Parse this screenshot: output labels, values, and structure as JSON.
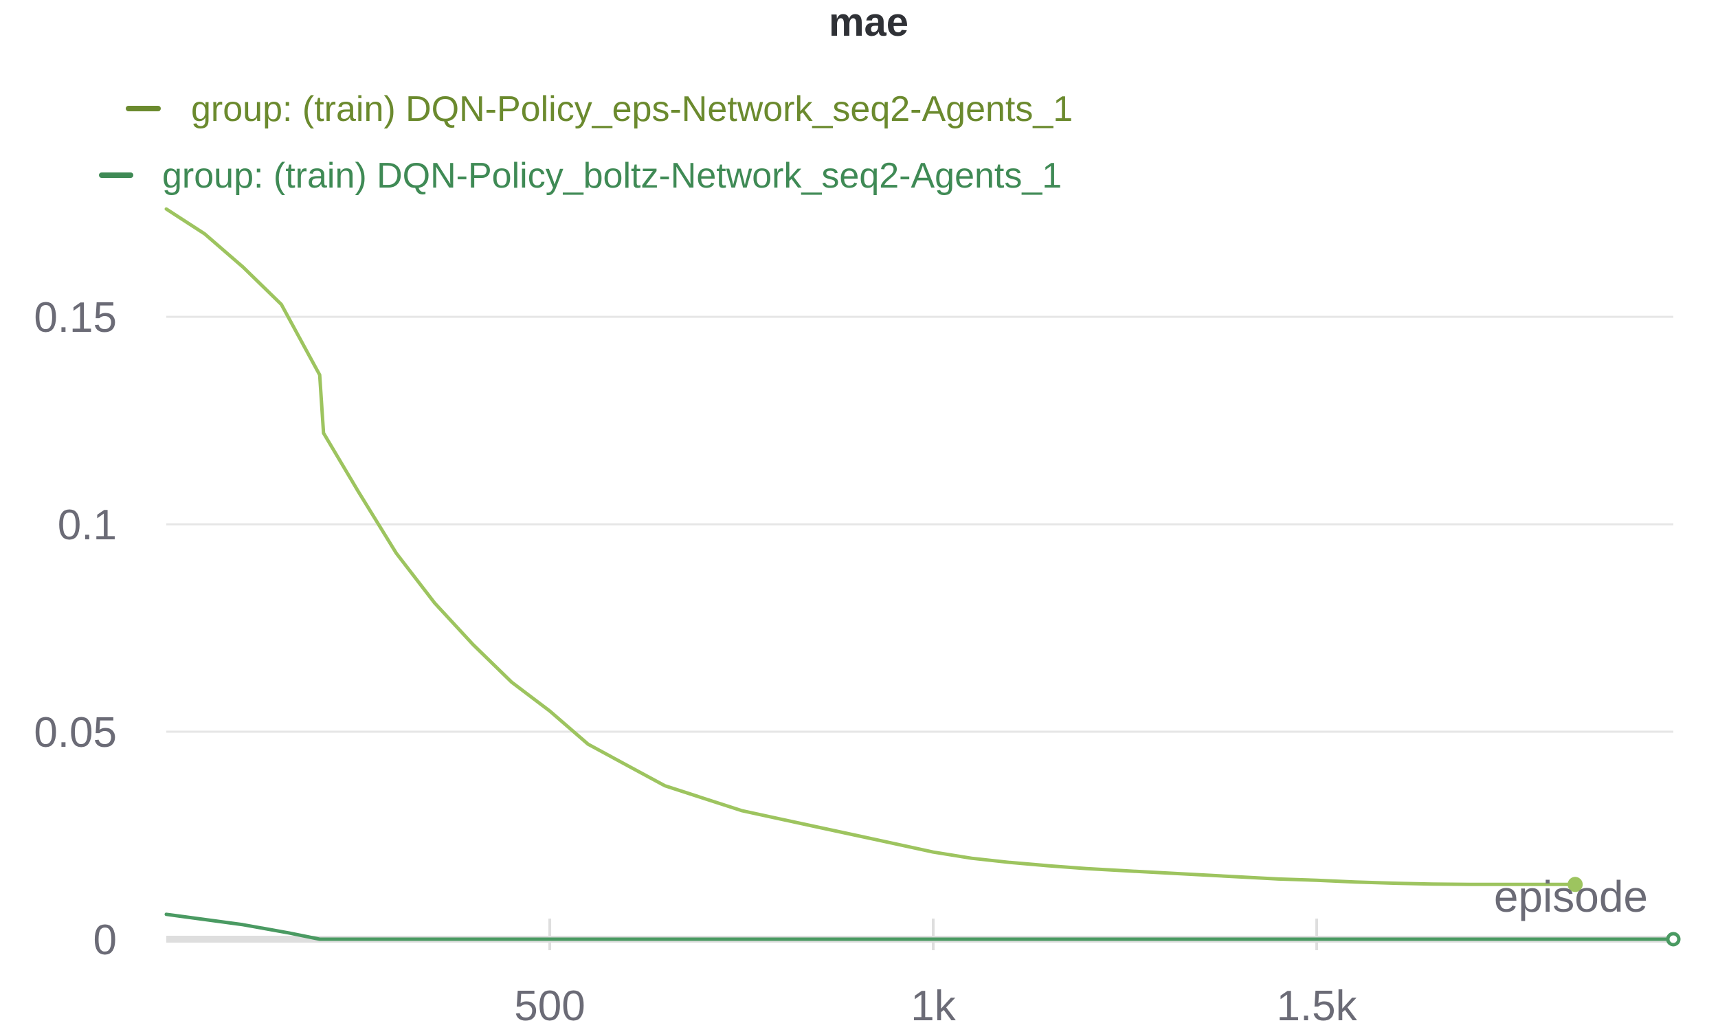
{
  "chart_data": {
    "type": "line",
    "title": "mae",
    "xlabel": "episode",
    "ylabel": "",
    "xlim": [
      0,
      1965
    ],
    "ylim": [
      0,
      0.18
    ],
    "x_ticks": [
      500,
      1000,
      1500
    ],
    "x_tick_labels": [
      "500",
      "1k",
      "1.5k"
    ],
    "y_ticks": [
      0,
      0.05,
      0.1,
      0.15
    ],
    "y_tick_labels": [
      "0",
      "0.05",
      "0.1",
      "0.15"
    ],
    "grid": true,
    "legend_position": "top-left",
    "series": [
      {
        "name": "group: (train) DQN-Policy_eps-Network_seq2-Agents_1",
        "legend_color": "#6b8a2e",
        "line_color": "#9dc45f",
        "end_marker": true,
        "points": [
          [
            0,
            0.176
          ],
          [
            50,
            0.17
          ],
          [
            100,
            0.162
          ],
          [
            150,
            0.153
          ],
          [
            200,
            0.136
          ],
          [
            205,
            0.122
          ],
          [
            250,
            0.108
          ],
          [
            300,
            0.093
          ],
          [
            350,
            0.081
          ],
          [
            400,
            0.071
          ],
          [
            450,
            0.062
          ],
          [
            500,
            0.055
          ],
          [
            550,
            0.047
          ],
          [
            600,
            0.042
          ],
          [
            650,
            0.037
          ],
          [
            700,
            0.034
          ],
          [
            750,
            0.031
          ],
          [
            800,
            0.029
          ],
          [
            850,
            0.027
          ],
          [
            900,
            0.025
          ],
          [
            950,
            0.023
          ],
          [
            1000,
            0.021
          ],
          [
            1050,
            0.0195
          ],
          [
            1100,
            0.0185
          ],
          [
            1150,
            0.0177
          ],
          [
            1200,
            0.017
          ],
          [
            1250,
            0.0165
          ],
          [
            1300,
            0.016
          ],
          [
            1350,
            0.0155
          ],
          [
            1400,
            0.015
          ],
          [
            1450,
            0.0145
          ],
          [
            1500,
            0.0142
          ],
          [
            1550,
            0.0138
          ],
          [
            1600,
            0.0135
          ],
          [
            1650,
            0.0133
          ],
          [
            1700,
            0.0132
          ],
          [
            1750,
            0.0132
          ],
          [
            1800,
            0.0132
          ],
          [
            1837,
            0.0132
          ]
        ]
      },
      {
        "name": "group: (train) DQN-Policy_boltz-Network_seq2-Agents_1",
        "legend_color": "#3f8a55",
        "line_color": "#4a9a62",
        "end_marker": true,
        "points": [
          [
            0,
            0.006
          ],
          [
            100,
            0.0035
          ],
          [
            160,
            0.0015
          ],
          [
            200,
            0.0
          ],
          [
            1965,
            0.0
          ]
        ]
      }
    ]
  }
}
